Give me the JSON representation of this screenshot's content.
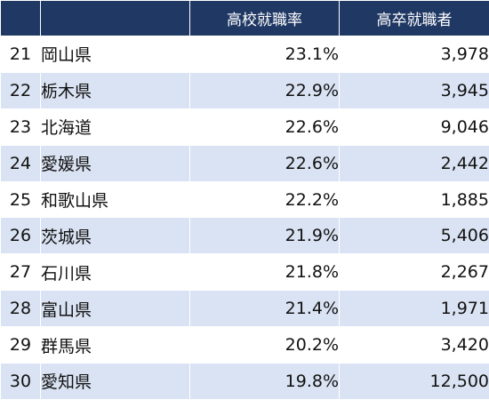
{
  "table": {
    "headers": [
      "",
      "",
      "高校就職率",
      "高卒就職者"
    ],
    "rows": [
      {
        "rank": "21",
        "prefecture": "岡山県",
        "rate": "23.1%",
        "count": "3,978"
      },
      {
        "rank": "22",
        "prefecture": "栃木県",
        "rate": "22.9%",
        "count": "3,945"
      },
      {
        "rank": "23",
        "prefecture": "北海道",
        "rate": "22.6%",
        "count": "9,046"
      },
      {
        "rank": "24",
        "prefecture": "愛媛県",
        "rate": "22.6%",
        "count": "2,442"
      },
      {
        "rank": "25",
        "prefecture": "和歌山県",
        "rate": "22.2%",
        "count": "1,885"
      },
      {
        "rank": "26",
        "prefecture": "茨城県",
        "rate": "21.9%",
        "count": "5,406"
      },
      {
        "rank": "27",
        "prefecture": "石川県",
        "rate": "21.8%",
        "count": "2,267"
      },
      {
        "rank": "28",
        "prefecture": "富山県",
        "rate": "21.4%",
        "count": "1,971"
      },
      {
        "rank": "29",
        "prefecture": "群馬県",
        "rate": "20.2%",
        "count": "3,420"
      },
      {
        "rank": "30",
        "prefecture": "愛知県",
        "rate": "19.8%",
        "count": "12,500"
      }
    ]
  },
  "colors": {
    "header_bg": "#203864",
    "header_text": "#ffffff",
    "stripe": "#dae3f3",
    "row_bg": "#ffffff"
  }
}
